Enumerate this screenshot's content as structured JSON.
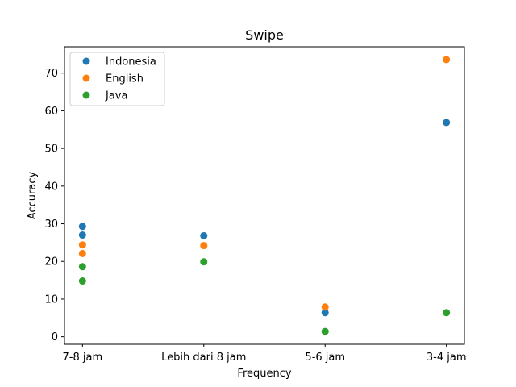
{
  "chart_data": {
    "type": "scatter",
    "title": "Swipe",
    "xlabel": "Frequency",
    "ylabel": "Accuracy",
    "categories": [
      "7-8 jam",
      "Lebih dari 8 jam",
      "5-6 jam",
      "3-4 jam"
    ],
    "ylim": [
      -2,
      77
    ],
    "yticks": [
      0,
      10,
      20,
      30,
      40,
      50,
      60,
      70
    ],
    "grid": false,
    "legend_position": "top-left",
    "series": [
      {
        "name": "Indonesia",
        "color": "#1f77b4",
        "points": [
          {
            "x": "7-8 jam",
            "y": 29.3
          },
          {
            "x": "7-8 jam",
            "y": 27.0
          },
          {
            "x": "Lebih dari 8 jam",
            "y": 26.8
          },
          {
            "x": "5-6 jam",
            "y": 6.4
          },
          {
            "x": "3-4 jam",
            "y": 56.9
          }
        ]
      },
      {
        "name": "English",
        "color": "#ff7f0e",
        "points": [
          {
            "x": "7-8 jam",
            "y": 24.4
          },
          {
            "x": "7-8 jam",
            "y": 22.1
          },
          {
            "x": "Lebih dari 8 jam",
            "y": 24.2
          },
          {
            "x": "5-6 jam",
            "y": 7.9
          },
          {
            "x": "3-4 jam",
            "y": 73.6
          }
        ]
      },
      {
        "name": "Java",
        "color": "#2ca02c",
        "points": [
          {
            "x": "7-8 jam",
            "y": 18.6
          },
          {
            "x": "7-8 jam",
            "y": 14.8
          },
          {
            "x": "Lebih dari 8 jam",
            "y": 19.9
          },
          {
            "x": "5-6 jam",
            "y": 1.4
          },
          {
            "x": "3-4 jam",
            "y": 6.4
          }
        ]
      }
    ]
  }
}
